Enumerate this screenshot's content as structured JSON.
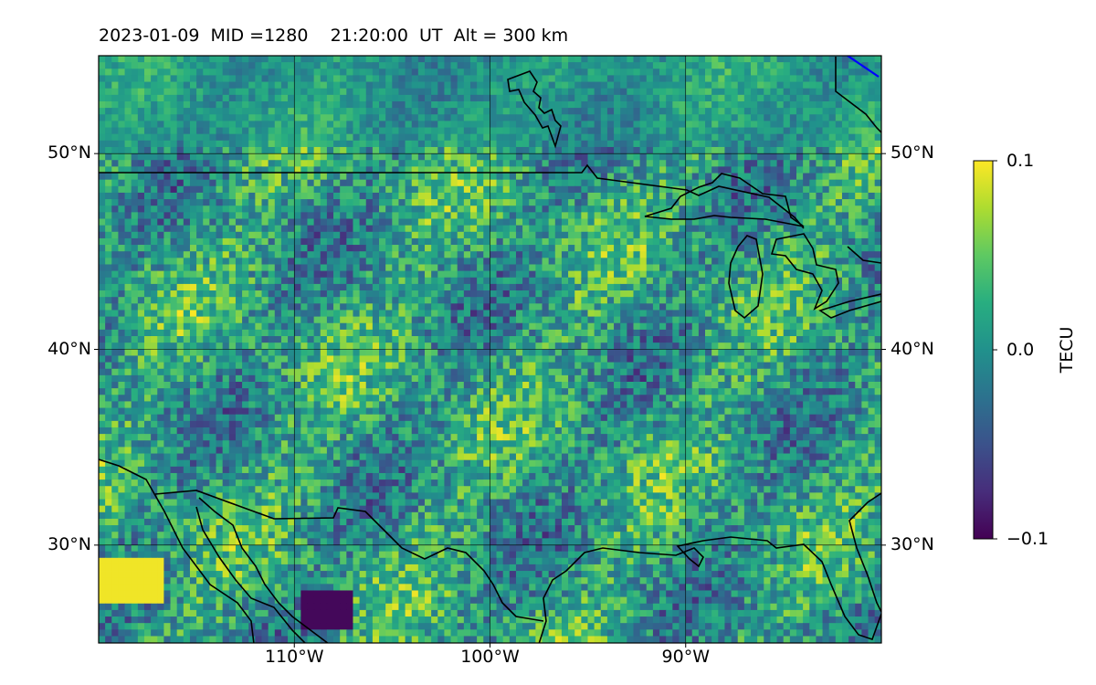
{
  "title": "2023-01-09  MID =1280    21:20:00  UT  Alt = 300 km",
  "map": {
    "lat_labels": [
      {
        "lat": 50,
        "label": "50°N"
      },
      {
        "lat": 40,
        "label": "40°N"
      },
      {
        "lat": 30,
        "label": "30°N"
      }
    ],
    "lon_labels": [
      {
        "lon": -110,
        "label": "110°W"
      },
      {
        "lon": -100,
        "label": "100°W"
      },
      {
        "lon": -90,
        "label": "90°W"
      }
    ],
    "lon_range": [
      -120,
      -80
    ],
    "lat_range": [
      25,
      55
    ],
    "gridlines": true,
    "coastline_color": "#000000",
    "grid_color": "#000000"
  },
  "colorbar": {
    "label": "TECU",
    "ticks": [
      {
        "value": 0.1,
        "label": "0.1"
      },
      {
        "value": 0.0,
        "label": "0.0"
      },
      {
        "value": -0.1,
        "label": "−0.1"
      }
    ],
    "vmin": -0.1,
    "vmax": 0.1,
    "colormap": "viridis"
  }
}
